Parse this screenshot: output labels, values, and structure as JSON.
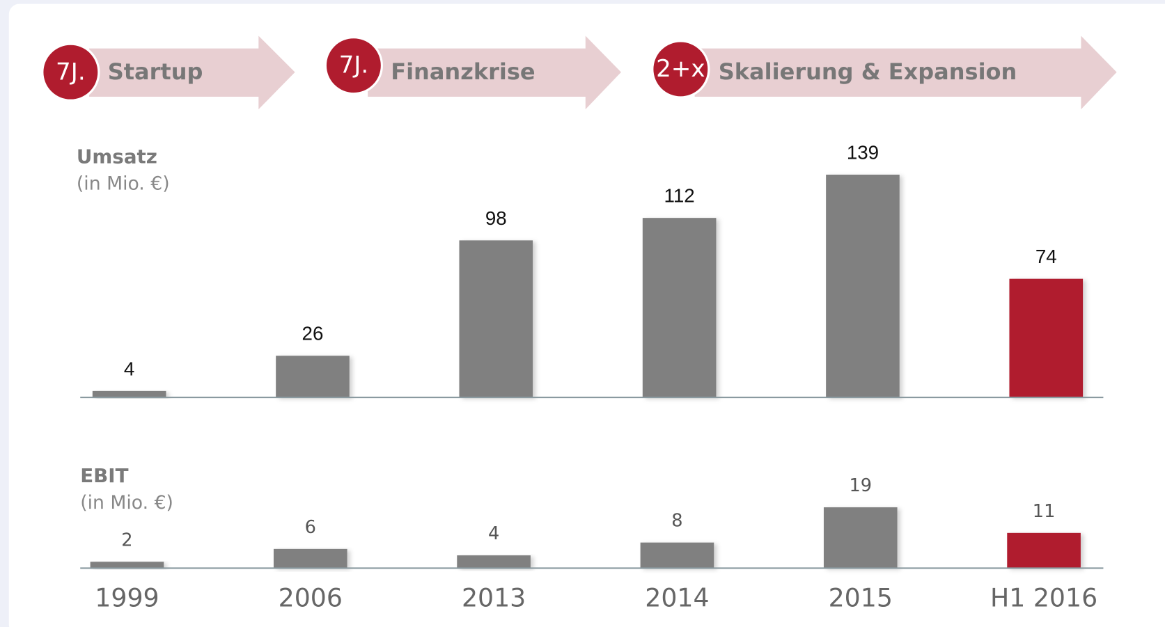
{
  "phases": [
    {
      "badge": "7J.",
      "label": "Startup"
    },
    {
      "badge": "7J.",
      "label": "Finanzkrise"
    },
    {
      "badge": "2+x",
      "label": "Skalierung & Expansion"
    }
  ],
  "chart_data": [
    {
      "type": "bar",
      "title": "Umsatz",
      "subtitle": "(in Mio. €)",
      "values": [
        4,
        26,
        98,
        112,
        139,
        74
      ],
      "colors": [
        "#808080",
        "#808080",
        "#808080",
        "#808080",
        "#808080",
        "#b01c2e"
      ]
    },
    {
      "type": "bar",
      "title": "EBIT",
      "subtitle": "(in Mio. €)",
      "categories": [
        "1999",
        "2006",
        "2013",
        "2014",
        "2015",
        "H1 2016"
      ],
      "values": [
        2,
        6,
        4,
        8,
        19,
        11
      ],
      "colors": [
        "#808080",
        "#808080",
        "#808080",
        "#808080",
        "#808080",
        "#b01c2e"
      ]
    }
  ]
}
